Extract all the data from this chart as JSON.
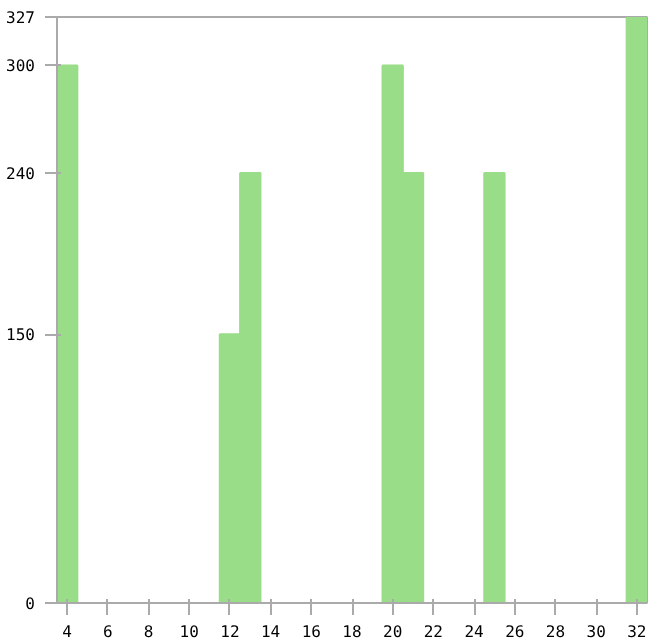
{
  "chart_data": {
    "type": "bar",
    "x": [
      4,
      5,
      6,
      7,
      8,
      9,
      10,
      11,
      12,
      13,
      14,
      15,
      16,
      17,
      18,
      19,
      20,
      21,
      22,
      23,
      24,
      25,
      26,
      27,
      28,
      29,
      30,
      31,
      32
    ],
    "values": [
      300,
      0,
      0,
      0,
      0,
      0,
      0,
      0,
      150,
      240,
      0,
      0,
      0,
      0,
      0,
      0,
      300,
      240,
      0,
      0,
      0,
      240,
      0,
      0,
      0,
      0,
      0,
      0,
      327
    ],
    "color": "#99dd88",
    "xlim": [
      3.5,
      32.5
    ],
    "xticks": [
      4,
      6,
      8,
      10,
      12,
      14,
      16,
      18,
      20,
      22,
      24,
      26,
      28,
      30,
      32
    ],
    "ylim": [
      0,
      327
    ],
    "yticks": [
      0,
      150,
      240,
      300,
      327
    ],
    "grid": false
  }
}
